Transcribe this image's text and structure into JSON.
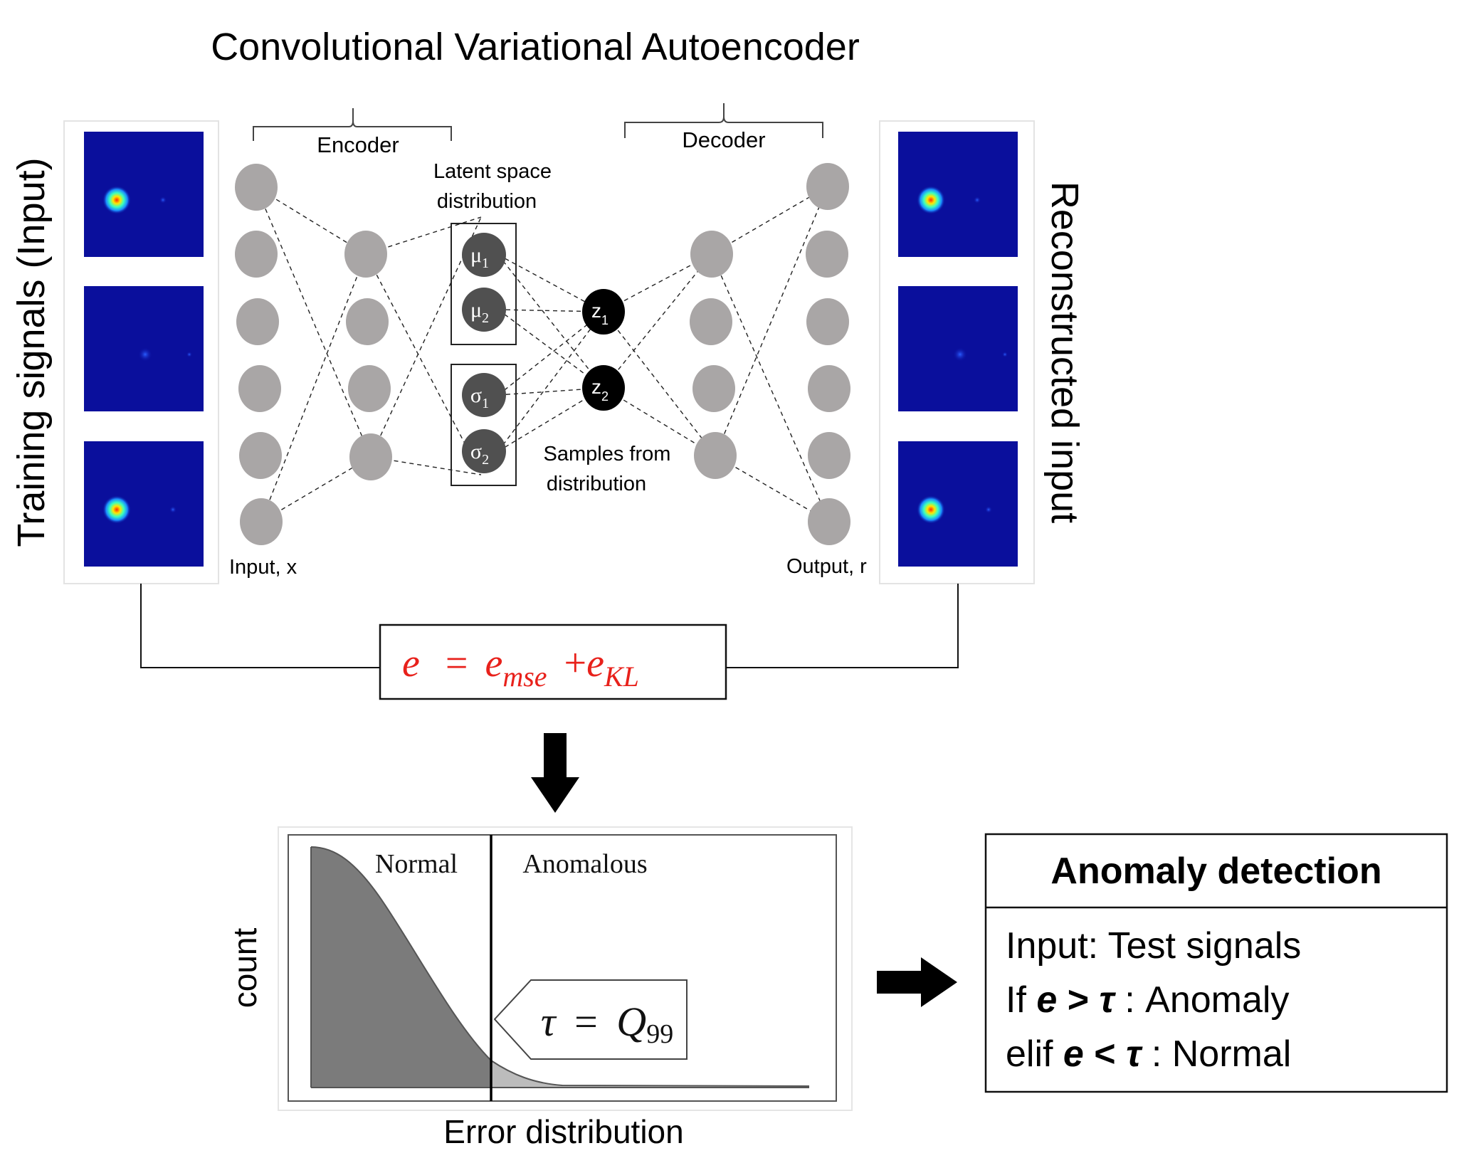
{
  "title": "Convolutional Variational Autoencoder",
  "input_panel": {
    "label": "Training signals (Input)",
    "image_count": 3
  },
  "output_panel": {
    "label": "Reconstructed input",
    "image_count": 3
  },
  "network": {
    "encoder_label": "Encoder",
    "decoder_label": "Decoder",
    "latent_label_line1": "Latent space",
    "latent_label_line2": "distribution",
    "samples_label_line1": "Samples from",
    "samples_label_line2": "distribution",
    "input_label": "Input, x",
    "output_label": "Output, r",
    "mu1": "μ",
    "mu1_sub": "1",
    "mu2": "μ",
    "mu2_sub": "2",
    "sigma1": "σ",
    "sigma1_sub": "1",
    "sigma2": "σ",
    "sigma2_sub": "2",
    "z1": "z",
    "z1_sub": "1",
    "z2": "z",
    "z2_sub": "2"
  },
  "loss": {
    "e": "e",
    "equals": "=",
    "e_mse": "e",
    "mse_sub": "mse",
    "plus": "+",
    "e_kl": "e",
    "kl_sub": "KL"
  },
  "histogram": {
    "normal_label": "Normal",
    "anomalous_label": "Anomalous",
    "threshold_tau": "τ",
    "threshold_eq": "=",
    "threshold_q": "Q",
    "threshold_sub": "99",
    "ylabel": "count",
    "xlabel": "Error distribution"
  },
  "detection": {
    "title": "Anomaly detection",
    "line1": "Input: Test signals",
    "line2_prefix": "If ",
    "line2_e": "e",
    "line2_op": " > ",
    "line2_tau": "τ",
    "line2_suffix": " : Anomaly",
    "line3_prefix": "elif ",
    "line3_e": "e",
    "line3_op": " < ",
    "line3_tau": "τ",
    "line3_suffix": " : Normal"
  },
  "colors": {
    "node_gray": "#a9a6a6",
    "latent_dark": "#505050",
    "z_black": "#000000",
    "heatmap_bg": "#0a0f9c",
    "loss_red": "#e8211b",
    "hist_fill": "#7b7b7b"
  }
}
